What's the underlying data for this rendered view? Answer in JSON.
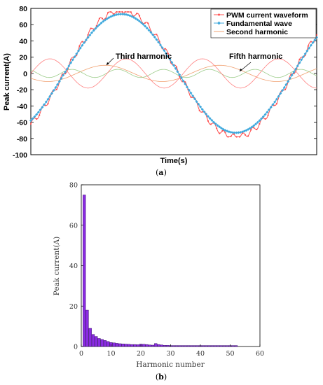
{
  "chart_data": [
    {
      "type": "line",
      "panel_label": "(a)",
      "xlabel": "Time(s)",
      "ylabel": "Peak current(A)",
      "ylim": [
        -100,
        80
      ],
      "yticks": [
        -100,
        -80,
        -60,
        -40,
        -20,
        0,
        20,
        40,
        60,
        80
      ],
      "xticks": [],
      "grid": false,
      "legend_position": "top-right",
      "annotations": [
        {
          "text": "Third harmonic"
        },
        {
          "text": "Fifth harmonic"
        }
      ],
      "legend": [
        {
          "name": "PWM current waveform",
          "color": "#ff4d4d",
          "marker": "dot"
        },
        {
          "name": "Fundamental wave",
          "color": "#3fa9dd",
          "marker": "diamond"
        },
        {
          "name": "Second harmonic",
          "color": "#f0a070",
          "marker": "none"
        }
      ],
      "series": [
        {
          "color": "#ff4d4d",
          "amplitude": 78,
          "cycles_shown": 1.25
        },
        {
          "color": "#3fa9dd",
          "amplitude": 73,
          "cycles_shown": 1.25
        },
        {
          "color": "#f0a070",
          "amplitude": 10,
          "cycles_shown": 2.5
        },
        {
          "color": "#ff8080",
          "amplitude": 18,
          "cycles_shown": 3.75
        },
        {
          "color": "#9ccc8a",
          "amplitude": 5,
          "cycles_shown": 6.25
        }
      ]
    },
    {
      "type": "bar",
      "panel_label": "(b)",
      "xlabel": "Harmonic number",
      "ylabel": "Peak current(A)",
      "xlim": [
        0,
        60
      ],
      "ylim": [
        0,
        80
      ],
      "xticks": [
        0,
        10,
        20,
        30,
        40,
        50,
        60
      ],
      "yticks": [
        0,
        20,
        40,
        60,
        80
      ],
      "bar_color": "#8a2be2",
      "x": [
        1,
        2,
        3,
        4,
        5,
        6,
        7,
        8,
        9,
        10,
        11,
        12,
        13,
        14,
        15,
        16,
        17,
        18,
        19,
        20,
        21,
        22,
        23,
        24,
        25,
        26,
        27,
        28,
        29,
        30,
        31,
        32,
        33,
        34,
        35,
        36,
        37,
        38,
        39,
        40,
        41,
        42,
        43,
        44,
        45,
        46,
        47,
        48,
        49,
        50,
        51,
        52
      ],
      "values": [
        75,
        18,
        9,
        6,
        5,
        4,
        3.5,
        3,
        2.5,
        2,
        1.8,
        1.6,
        1.4,
        1.3,
        1.2,
        1.1,
        1,
        1,
        0.9,
        1.2,
        1.1,
        1,
        0.8,
        0.7,
        1.5,
        1,
        0.8,
        0.6,
        0.6,
        0.5,
        0.5,
        0.5,
        0.5,
        0.5,
        0.5,
        0.5,
        0.5,
        0.5,
        0.5,
        0.5,
        0.5,
        0.5,
        0.5,
        0.5,
        0.5,
        0.5,
        0.5,
        0.5,
        0.5,
        0.5,
        0.5,
        0.5
      ]
    }
  ]
}
